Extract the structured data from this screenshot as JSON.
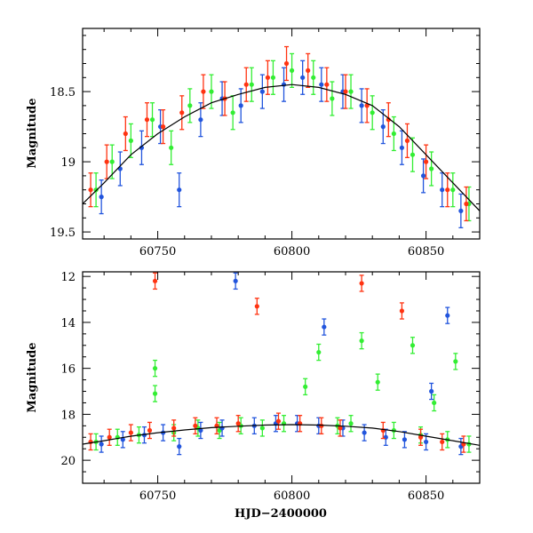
{
  "chart_data": [
    {
      "type": "scatter",
      "title": "",
      "xlabel": "",
      "ylabel": "Magnitude",
      "xlim": [
        60722,
        60870
      ],
      "ylim": [
        19.55,
        18.05
      ],
      "y_inverted": true,
      "xticks": [
        60750,
        60800,
        60850
      ],
      "yticks": [
        18.5,
        19,
        19.5
      ],
      "ytick_labels": [
        "18.5",
        "19",
        "19.5"
      ],
      "colors": {
        "blue": "#2255dd",
        "green": "#33ee33",
        "red": "#ff3311",
        "model": "#000000"
      },
      "series": [
        {
          "color_key": "green",
          "x": [
            60727,
            60733,
            60740,
            60748,
            60755,
            60762,
            60770,
            60778,
            60785,
            60793,
            60800,
            60808,
            60815,
            60822,
            60830,
            60838,
            60845,
            60852,
            60860,
            60866
          ],
          "y": [
            19.2,
            19.0,
            18.85,
            18.7,
            18.9,
            18.6,
            18.5,
            18.65,
            18.45,
            18.4,
            18.35,
            18.4,
            18.55,
            18.5,
            18.65,
            18.8,
            18.95,
            19.05,
            19.2,
            19.3
          ]
        },
        {
          "color_key": "blue",
          "x": [
            60729,
            60736,
            60744,
            60751,
            60758,
            60766,
            60774,
            60781,
            60789,
            60797,
            60804,
            60811,
            60819,
            60826,
            60834,
            60841,
            60849,
            60856,
            60863
          ],
          "y": [
            19.25,
            19.05,
            18.9,
            18.75,
            19.2,
            18.7,
            18.55,
            18.6,
            18.5,
            18.45,
            18.4,
            18.45,
            18.5,
            18.6,
            18.75,
            18.9,
            19.1,
            19.2,
            19.35
          ]
        },
        {
          "color_key": "red",
          "x": [
            60725,
            60731,
            60738,
            60746,
            60752,
            60759,
            60767,
            60775,
            60783,
            60791,
            60798,
            60806,
            60813,
            60820,
            60828,
            60836,
            60843,
            60850,
            60858,
            60865
          ],
          "y": [
            19.2,
            19.0,
            18.8,
            18.7,
            18.75,
            18.65,
            18.5,
            18.55,
            18.45,
            18.4,
            18.3,
            18.35,
            18.45,
            18.5,
            18.6,
            18.7,
            18.85,
            19.0,
            19.2,
            19.3
          ]
        }
      ],
      "model_curve": {
        "x": [
          60722,
          60730,
          60740,
          60750,
          60760,
          60770,
          60780,
          60790,
          60800,
          60810,
          60820,
          60830,
          60840,
          60850,
          60860,
          60870
        ],
        "y": [
          19.3,
          19.15,
          18.95,
          18.8,
          18.68,
          18.58,
          18.52,
          18.47,
          18.45,
          18.47,
          18.52,
          18.6,
          18.75,
          18.95,
          19.15,
          19.35
        ]
      }
    },
    {
      "type": "scatter",
      "title": "",
      "xlabel": "HJD−2400000",
      "ylabel": "Magnitude",
      "xlim": [
        60722,
        60870
      ],
      "ylim": [
        21.0,
        11.8
      ],
      "y_inverted": true,
      "xticks": [
        60750,
        60800,
        60850
      ],
      "yticks": [
        12,
        14,
        16,
        18,
        20
      ],
      "ytick_labels": [
        "12",
        "14",
        "16",
        "18",
        "20"
      ],
      "colors": {
        "blue": "#2255dd",
        "green": "#33ee33",
        "red": "#ff3311",
        "model": "#000000"
      },
      "series": [
        {
          "color_key": "green",
          "x": [
            60727,
            60735,
            60743,
            60749,
            60749,
            60756,
            60765,
            60773,
            60781,
            60789,
            60797,
            60805,
            60810,
            60817,
            60822,
            60826,
            60832,
            60838,
            60845,
            60848,
            60853,
            60858,
            60861,
            60866
          ],
          "y": [
            19.2,
            19.0,
            18.9,
            16.0,
            17.1,
            18.8,
            18.6,
            18.7,
            18.5,
            18.6,
            18.4,
            16.8,
            15.3,
            18.5,
            18.4,
            14.8,
            16.6,
            18.7,
            15.0,
            18.9,
            17.5,
            19.1,
            15.7,
            19.3
          ]
        },
        {
          "color_key": "blue",
          "x": [
            60729,
            60737,
            60745,
            60752,
            60758,
            60766,
            60774,
            60779,
            60786,
            60794,
            60802,
            60810,
            60812,
            60819,
            60827,
            60835,
            60842,
            60850,
            60852,
            60858,
            60863
          ],
          "y": [
            19.3,
            19.1,
            18.9,
            18.8,
            19.4,
            18.7,
            18.6,
            12.2,
            18.5,
            18.4,
            18.4,
            18.5,
            14.2,
            18.6,
            18.8,
            19.0,
            19.1,
            19.2,
            17.0,
            13.7,
            19.4
          ]
        },
        {
          "color_key": "red",
          "x": [
            60725,
            60732,
            60740,
            60747,
            60749,
            60756,
            60764,
            60772,
            60780,
            60787,
            60795,
            60803,
            60811,
            60818,
            60826,
            60834,
            60841,
            60848,
            60856,
            60864
          ],
          "y": [
            19.2,
            19.0,
            18.8,
            18.7,
            12.2,
            18.6,
            18.5,
            18.5,
            18.4,
            13.3,
            18.3,
            18.4,
            18.5,
            18.6,
            12.3,
            18.7,
            13.5,
            19.0,
            19.2,
            19.3
          ]
        }
      ],
      "model_curve": {
        "x": [
          60722,
          60730,
          60740,
          60750,
          60760,
          60770,
          60780,
          60790,
          60800,
          60810,
          60820,
          60830,
          60840,
          60850,
          60860,
          60870
        ],
        "y": [
          19.3,
          19.15,
          18.95,
          18.8,
          18.68,
          18.58,
          18.52,
          18.47,
          18.45,
          18.47,
          18.52,
          18.6,
          18.75,
          18.95,
          19.15,
          19.35
        ]
      }
    }
  ]
}
